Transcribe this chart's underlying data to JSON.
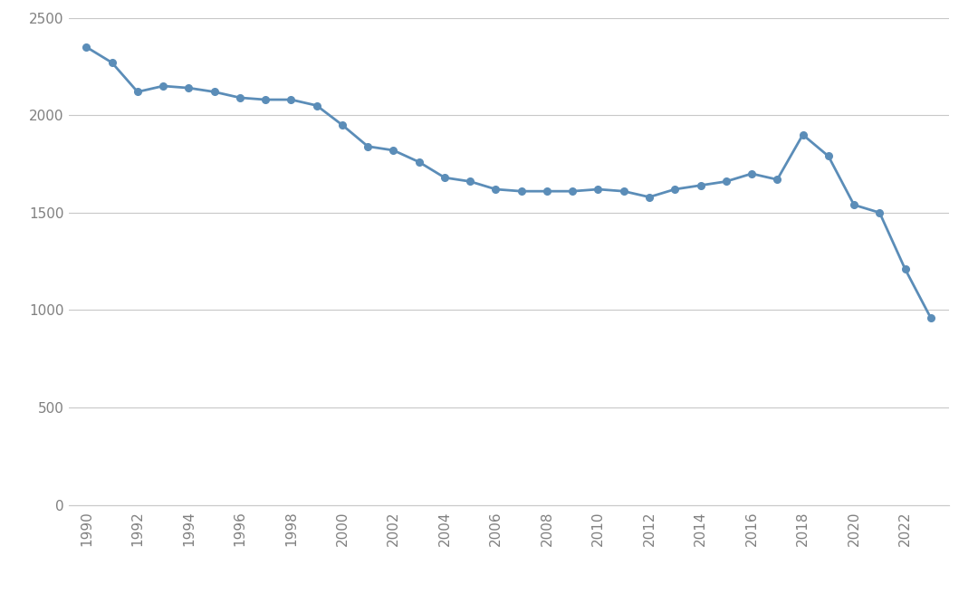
{
  "years": [
    1990,
    1991,
    1992,
    1993,
    1994,
    1995,
    1996,
    1997,
    1998,
    1999,
    2000,
    2001,
    2002,
    2003,
    2004,
    2005,
    2006,
    2007,
    2008,
    2009,
    2010,
    2011,
    2012,
    2013,
    2014,
    2015,
    2016,
    2017,
    2018,
    2019,
    2020,
    2021,
    2022,
    2023
  ],
  "values": [
    2350,
    2270,
    2120,
    2150,
    2140,
    2120,
    2090,
    2080,
    2080,
    2050,
    1950,
    1840,
    1820,
    1760,
    1680,
    1660,
    1620,
    1610,
    1610,
    1610,
    1620,
    1610,
    1580,
    1620,
    1640,
    1660,
    1700,
    1670,
    1900,
    1790,
    1540,
    1500,
    1210,
    960
  ],
  "line_color": "#5B8DB8",
  "marker_color": "#5B8DB8",
  "background_color": "#FFFFFF",
  "grid_color": "#C8C8C8",
  "tick_label_color": "#808080",
  "ylim": [
    0,
    2500
  ],
  "yticks": [
    0,
    500,
    1000,
    1500,
    2000,
    2500
  ],
  "figsize": [
    10.8,
    6.56
  ],
  "dpi": 100
}
